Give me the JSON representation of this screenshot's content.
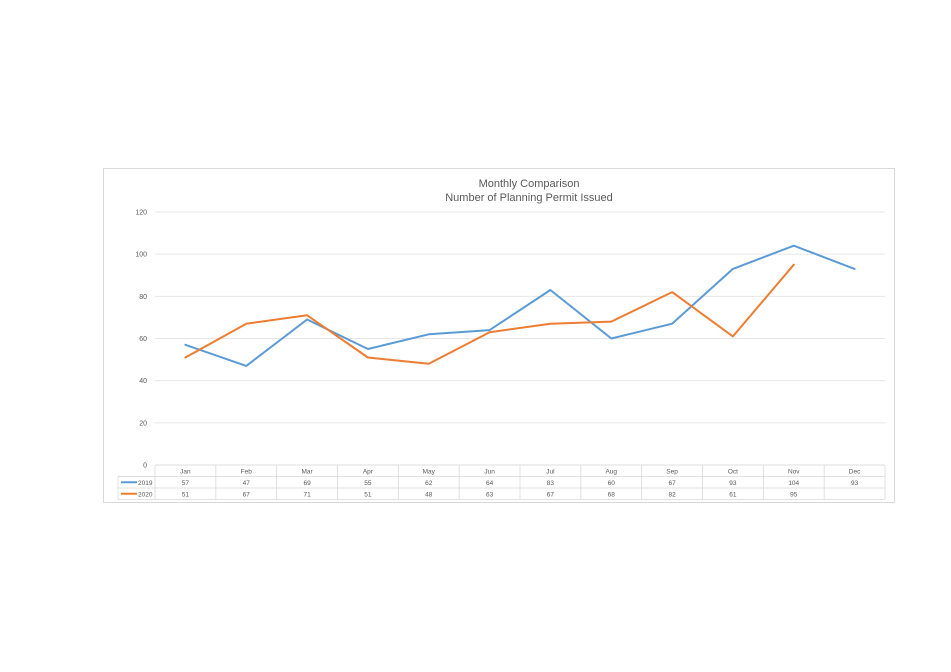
{
  "chart_data": {
    "type": "line",
    "title": "Monthly Comparison",
    "subtitle": "Number of Planning Permit Issued",
    "categories": [
      "Jan",
      "Feb",
      "Mar",
      "Apr",
      "May",
      "Jun",
      "Jul",
      "Aug",
      "Sep",
      "Oct",
      "Nov",
      "Dec"
    ],
    "ylim": [
      0,
      120
    ],
    "yticks": [
      "0",
      "20",
      "40",
      "60",
      "80",
      "100",
      "120"
    ],
    "grid": true,
    "legend": "data-table",
    "series": [
      {
        "name": "2019",
        "color": "#5b9bd5",
        "values": [
          57,
          47,
          69,
          55,
          62,
          64,
          83,
          60,
          67,
          93,
          104,
          93
        ]
      },
      {
        "name": "2020",
        "color": "#ed7d31",
        "values": [
          51,
          67,
          71,
          51,
          48,
          63,
          67,
          68,
          82,
          61,
          95,
          null
        ]
      }
    ]
  }
}
